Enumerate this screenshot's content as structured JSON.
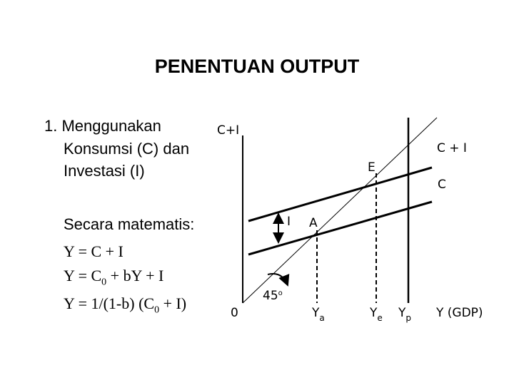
{
  "header": {
    "title": "PENENTUAN OUTPUT"
  },
  "text": {
    "heading": [
      "1. Menggunakan",
      "Konsumsi (C) dan",
      "Investasi (I)"
    ],
    "intro": "Secara matematis:",
    "formulas": [
      {
        "before": "Y = C + I"
      },
      {
        "before": "Y = C",
        "sub": "0",
        "after": " + bY + I"
      },
      {
        "before": "Y = 1/(1-b) (C",
        "sub": "0",
        "after": " + I)"
      }
    ]
  },
  "diagram": {
    "y_axis_label": "C+I",
    "origin": "0",
    "x_axis_label": "Y (GDP)",
    "line_ci": "C + I",
    "line_c": "C",
    "point_e": "E",
    "point_a": "A",
    "gap": "I",
    "angle": {
      "main": "45",
      "sup": "o"
    },
    "ya": {
      "main": "Y",
      "sub": "a"
    },
    "ye": {
      "main": "Y",
      "sub": "e"
    },
    "yp": {
      "main": "Y",
      "sub": "p"
    }
  }
}
